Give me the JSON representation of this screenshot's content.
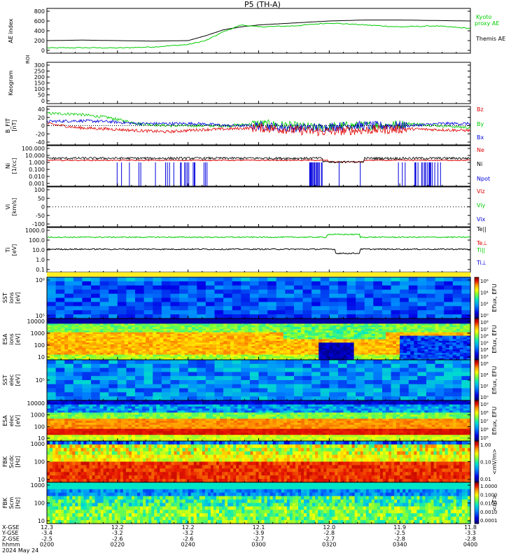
{
  "title": "P5 (TH-A)",
  "colors": {
    "black": "#000000",
    "red": "#e00000",
    "green": "#00cc00",
    "blue": "#0000dd",
    "ae_kyoto": "#00cc00"
  },
  "panels": [
    {
      "key": "ae",
      "ylabel": "AE index",
      "ticks": [
        "800",
        "600",
        "400",
        "200",
        "0"
      ],
      "legend": [
        {
          "text": "Kyoto",
          "color": "#00cc00"
        },
        {
          "text": "proxy AE",
          "color": "#00cc00"
        },
        {
          "text": "Themis AE",
          "color": "#000000"
        }
      ]
    },
    {
      "key": "keogram",
      "ylabel": "Keogram",
      "top_label": "ROI",
      "ticks": [
        "300",
        "250",
        "200",
        "150",
        "100",
        "50",
        "0"
      ]
    },
    {
      "key": "bfield",
      "ylabel": "B_FIT",
      "unit": "[nT]",
      "ticks": [
        "40",
        "20",
        "0",
        "-20",
        "-40"
      ],
      "legend": [
        {
          "text": "Bz",
          "color": "#e00000"
        },
        {
          "text": "By",
          "color": "#00cc00"
        },
        {
          "text": "Bx",
          "color": "#0000dd"
        }
      ]
    },
    {
      "key": "density",
      "ylabel": "Ni",
      "unit": "[1/cc]",
      "ticks": [
        "100.000",
        "10.000",
        "1.000",
        "0.100",
        "0.010",
        "0.001"
      ],
      "legend": [
        {
          "text": "Ne",
          "color": "#e00000"
        },
        {
          "text": "Ni",
          "color": "#000000"
        },
        {
          "text": "Npot",
          "color": "#0000dd"
        }
      ]
    },
    {
      "key": "velocity",
      "ylabel": "Vi",
      "unit": "[km/s]",
      "ticks": [
        "100",
        "50",
        "0",
        "-50",
        "-100"
      ],
      "legend": [
        {
          "text": "Viz",
          "color": "#e00000"
        },
        {
          "text": "Viy",
          "color": "#00cc00"
        },
        {
          "text": "Vix",
          "color": "#0000dd"
        }
      ]
    },
    {
      "key": "temperature",
      "ylabel": "Ti",
      "unit": "[eV]",
      "ticks": [
        "1000.0",
        "100.0",
        "10.0",
        "1.0",
        "0.1"
      ],
      "legend": [
        {
          "text": "Te||",
          "color": "#000000"
        },
        {
          "text": "Te⊥",
          "color": "#e00000"
        },
        {
          "text": "Ti||",
          "color": "#00cc00"
        },
        {
          "text": "Ti⊥",
          "color": "#0000dd"
        }
      ]
    },
    {
      "key": "sst_ion",
      "ylabel": "SST",
      "sub": "ions",
      "unit": "[eV]",
      "ticks": [
        "10⁶",
        "10⁵"
      ],
      "colorbar": [
        "10⁶",
        "10⁴",
        "10²",
        "10⁰"
      ],
      "cb_label": "Eflux, EFU"
    },
    {
      "key": "esa_ion",
      "ylabel": "ESA",
      "sub": "ions",
      "unit": "[eV]",
      "ticks": [
        "10000",
        "1000",
        "100",
        "10"
      ],
      "colorbar": [
        "10⁸",
        "10⁷",
        "10⁶",
        "10⁵",
        "10⁴",
        "10³"
      ],
      "cb_label": "Eflux, EFU"
    },
    {
      "key": "sst_elec",
      "ylabel": "SST",
      "sub": "elec",
      "unit": "[eV]",
      "ticks": [
        "10⁵"
      ],
      "colorbar": [
        "10⁶",
        "10⁴",
        "10²",
        "10⁰"
      ],
      "cb_label": "Eflux, EFU"
    },
    {
      "key": "esa_elec",
      "ylabel": "ESA",
      "sub": "elec",
      "unit": "[eV]",
      "ticks": [
        "10000",
        "1000",
        "100",
        "10"
      ],
      "colorbar": [
        "10⁹",
        "10⁸",
        "10⁷",
        "10⁶",
        "10⁵"
      ],
      "cb_label": "Eflux, EFU"
    },
    {
      "key": "fbk_e",
      "ylabel": "FBK",
      "sub": "Scdc",
      "unit": "[Hz]",
      "ticks": [
        "1000",
        "100",
        "10"
      ],
      "colorbar": [
        "1.00",
        "0.10",
        "0.01"
      ],
      "cb_label": "<mV/m>"
    },
    {
      "key": "fbk_b",
      "ylabel": "FBK",
      "sub": "Scm",
      "unit": "[Hz]",
      "ticks": [
        "1000",
        "100",
        "10"
      ],
      "colorbar": [
        "1.0000",
        "0.1000",
        "0.0100",
        "0.0010",
        "0.0001"
      ],
      "cb_label": "<nT>"
    }
  ],
  "chart_data": {
    "type": "line",
    "title": "P5 (TH-A)",
    "x_ticks": [
      "D200",
      "D220",
      "D240",
      "D300",
      "D320",
      "D340",
      "D400"
    ],
    "ephemeris": {
      "labels": [
        "X-GSE",
        "Y-GSE",
        "Z-GSE",
        "hhmm",
        "2024 May 24"
      ],
      "columns": [
        [
          "12.3",
          "-3.4",
          "-2.5",
          "0200"
        ],
        [
          "12.2",
          "-3.2",
          "-2.6",
          "0220"
        ],
        [
          "12.2",
          "-3.2",
          "-2.6",
          "0240"
        ],
        [
          "12.1",
          "-3.9",
          "-2.7",
          "0300"
        ],
        [
          "12.0",
          "-2.8",
          "-2.7",
          "0320"
        ],
        [
          "11.9",
          "-2.5",
          "-2.8",
          "0340"
        ],
        [
          "11.8",
          "-3.3",
          "-2.8",
          "0400"
        ]
      ]
    },
    "ae": {
      "ylim": [
        0,
        800
      ],
      "series": [
        {
          "name": "Themis AE",
          "x": [
            0,
            10,
            20,
            30,
            40,
            45,
            50,
            55,
            60,
            70,
            80,
            90,
            100,
            110,
            120
          ],
          "y": [
            200,
            210,
            200,
            190,
            200,
            300,
            420,
            480,
            520,
            560,
            600,
            620,
            620,
            610,
            600
          ]
        },
        {
          "name": "Kyoto proxy AE",
          "x": [
            0,
            10,
            20,
            30,
            40,
            45,
            50,
            55,
            60,
            70,
            80,
            90,
            100,
            110,
            120
          ],
          "y": [
            50,
            55,
            50,
            70,
            120,
            200,
            380,
            520,
            480,
            500,
            560,
            520,
            480,
            500,
            450
          ]
        }
      ]
    },
    "bfield": {
      "ylim": [
        -40,
        40
      ],
      "series": [
        {
          "name": "Bz",
          "mean": [
            5,
            -5,
            -8,
            -12,
            -15,
            -10,
            -8,
            -5,
            -10,
            -15,
            -12,
            -10,
            -8,
            -10,
            -12
          ]
        },
        {
          "name": "By",
          "mean": [
            30,
            28,
            20,
            5,
            0,
            0,
            0,
            5,
            0,
            -5,
            0,
            0,
            5,
            0,
            -5
          ]
        },
        {
          "name": "Bx",
          "mean": [
            10,
            12,
            10,
            5,
            5,
            5,
            0,
            0,
            -5,
            -5,
            0,
            0,
            0,
            5,
            5
          ]
        }
      ]
    },
    "density": {
      "ylim": [
        0.001,
        100
      ],
      "series": [
        {
          "name": "Ni",
          "value": 1.5
        },
        {
          "name": "Ne",
          "value": 2.0
        }
      ]
    },
    "temperature": {
      "ylim": [
        0.1,
        1000
      ],
      "series": [
        {
          "name": "Te||",
          "value": 250
        },
        {
          "name": "Ti||",
          "value": 12
        }
      ]
    }
  }
}
